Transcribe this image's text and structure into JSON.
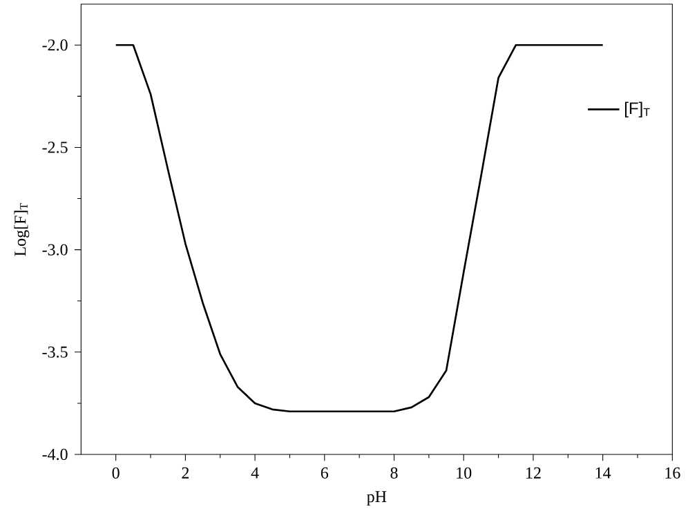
{
  "chart_data": {
    "type": "line",
    "xlabel": "pH",
    "ylabel": "Log[F]$_{T}$",
    "x": [
      0,
      0.5,
      1,
      1.5,
      2,
      2.5,
      3,
      3.5,
      4,
      4.5,
      5,
      5.5,
      6,
      6.5,
      7,
      7.5,
      8,
      8.5,
      9,
      9.5,
      10,
      10.5,
      11,
      11.5,
      12,
      12.5,
      13,
      13.5,
      14
    ],
    "series": [
      {
        "name": "[F]$_{T}$",
        "color": "#000000",
        "values": [
          -2.0,
          -2.0,
          -2.24,
          -2.61,
          -2.97,
          -3.26,
          -3.51,
          -3.67,
          -3.75,
          -3.78,
          -3.79,
          -3.79,
          -3.79,
          -3.79,
          -3.79,
          -3.79,
          -3.79,
          -3.77,
          -3.72,
          -3.59,
          -3.11,
          -2.64,
          -2.16,
          -2.0,
          -2.0,
          -2.0,
          -2.0,
          -2.0,
          -2.0
        ]
      }
    ],
    "xlim": [
      -1,
      16
    ],
    "xticks": [
      0,
      2,
      4,
      6,
      8,
      10,
      12,
      14,
      16
    ],
    "ylim": [
      -4.0,
      -1.8
    ],
    "yticks": [
      {
        "value": -4.0,
        "label": "-4.0"
      },
      {
        "value": -3.5,
        "label": "-3.5"
      },
      {
        "value": -3.0,
        "label": "-3.0"
      },
      {
        "value": -2.5,
        "label": "-2.5"
      },
      {
        "value": -2.0,
        "label": "-2.0"
      }
    ],
    "legend": "top right",
    "grid": false,
    "marker": "none",
    "line_style": "solid"
  }
}
